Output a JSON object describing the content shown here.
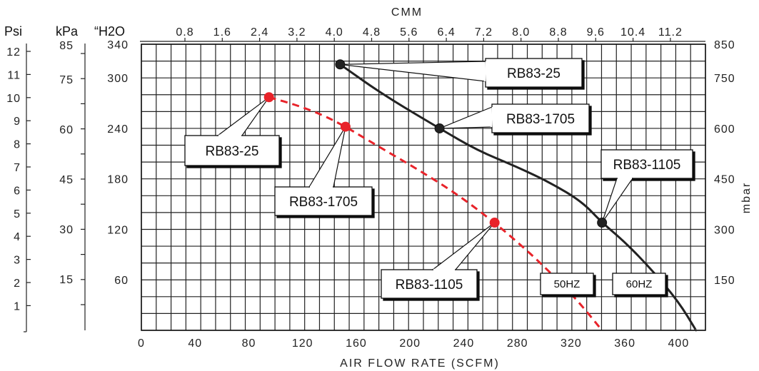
{
  "chart_data": {
    "type": "line",
    "title": "",
    "xlabel": "AIR FLOW RATE (SCFM)",
    "x2label": "CMM",
    "ylabel_units": [
      "Psi",
      "kPa",
      "“H2O"
    ],
    "y2label": "mbar",
    "xlim": [
      0,
      420
    ],
    "ylim": [
      0,
      340
    ],
    "grid": true,
    "x_ticks": [
      "0",
      "40",
      "80",
      "120",
      "160",
      "200",
      "240",
      "280",
      "320",
      "360",
      "400"
    ],
    "x2_ticks": [
      "0.8",
      "1.6",
      "2.4",
      "3.2",
      "4.0",
      "4.8",
      "5.6",
      "6.4",
      "7.2",
      "8.0",
      "8.8",
      "9.6",
      "10.4",
      "11.2"
    ],
    "psi_ticks": [
      "1",
      "2",
      "3",
      "4",
      "5",
      "6",
      "7",
      "8",
      "9",
      "10",
      "11",
      "12"
    ],
    "kpa_ticks": [
      "15",
      "30",
      "45",
      "60",
      "75",
      "85"
    ],
    "h2o_ticks": [
      "60",
      "120",
      "180",
      "240",
      "300",
      "340"
    ],
    "mbar_ticks": [
      "150",
      "300",
      "450",
      "600",
      "750",
      "850"
    ],
    "series": [
      {
        "name": "60HZ",
        "color": "#222222",
        "dash": false,
        "x": [
          148,
          180,
          222,
          250,
          280,
          305,
          328,
          343,
          360,
          380,
          400,
          413
        ],
        "y": [
          316,
          280,
          240,
          214,
          194,
          175,
          153,
          128,
          105,
          72,
          34,
          0
        ]
      },
      {
        "name": "50HZ",
        "color": "#e8232a",
        "dash": true,
        "x": [
          95,
          115,
          135,
          152,
          175,
          205,
          235,
          263,
          285,
          305,
          325,
          343
        ],
        "y": [
          277,
          268,
          256,
          242,
          220,
          192,
          162,
          128,
          98,
          68,
          35,
          0
        ]
      }
    ],
    "points": [
      {
        "label": "RB83-25",
        "series": "60HZ",
        "x": 148,
        "y": 316
      },
      {
        "label": "RB83-1705",
        "series": "60HZ",
        "x": 222,
        "y": 240
      },
      {
        "label": "RB83-1105",
        "series": "60HZ",
        "x": 343,
        "y": 128
      },
      {
        "label": "RB83-25",
        "series": "50HZ",
        "x": 95,
        "y": 277
      },
      {
        "label": "RB83-1705",
        "series": "50HZ",
        "x": 152,
        "y": 242
      },
      {
        "label": "RB83-1105",
        "series": "50HZ",
        "x": 263,
        "y": 128
      }
    ],
    "series_labels": [
      "50HZ",
      "60HZ"
    ]
  }
}
